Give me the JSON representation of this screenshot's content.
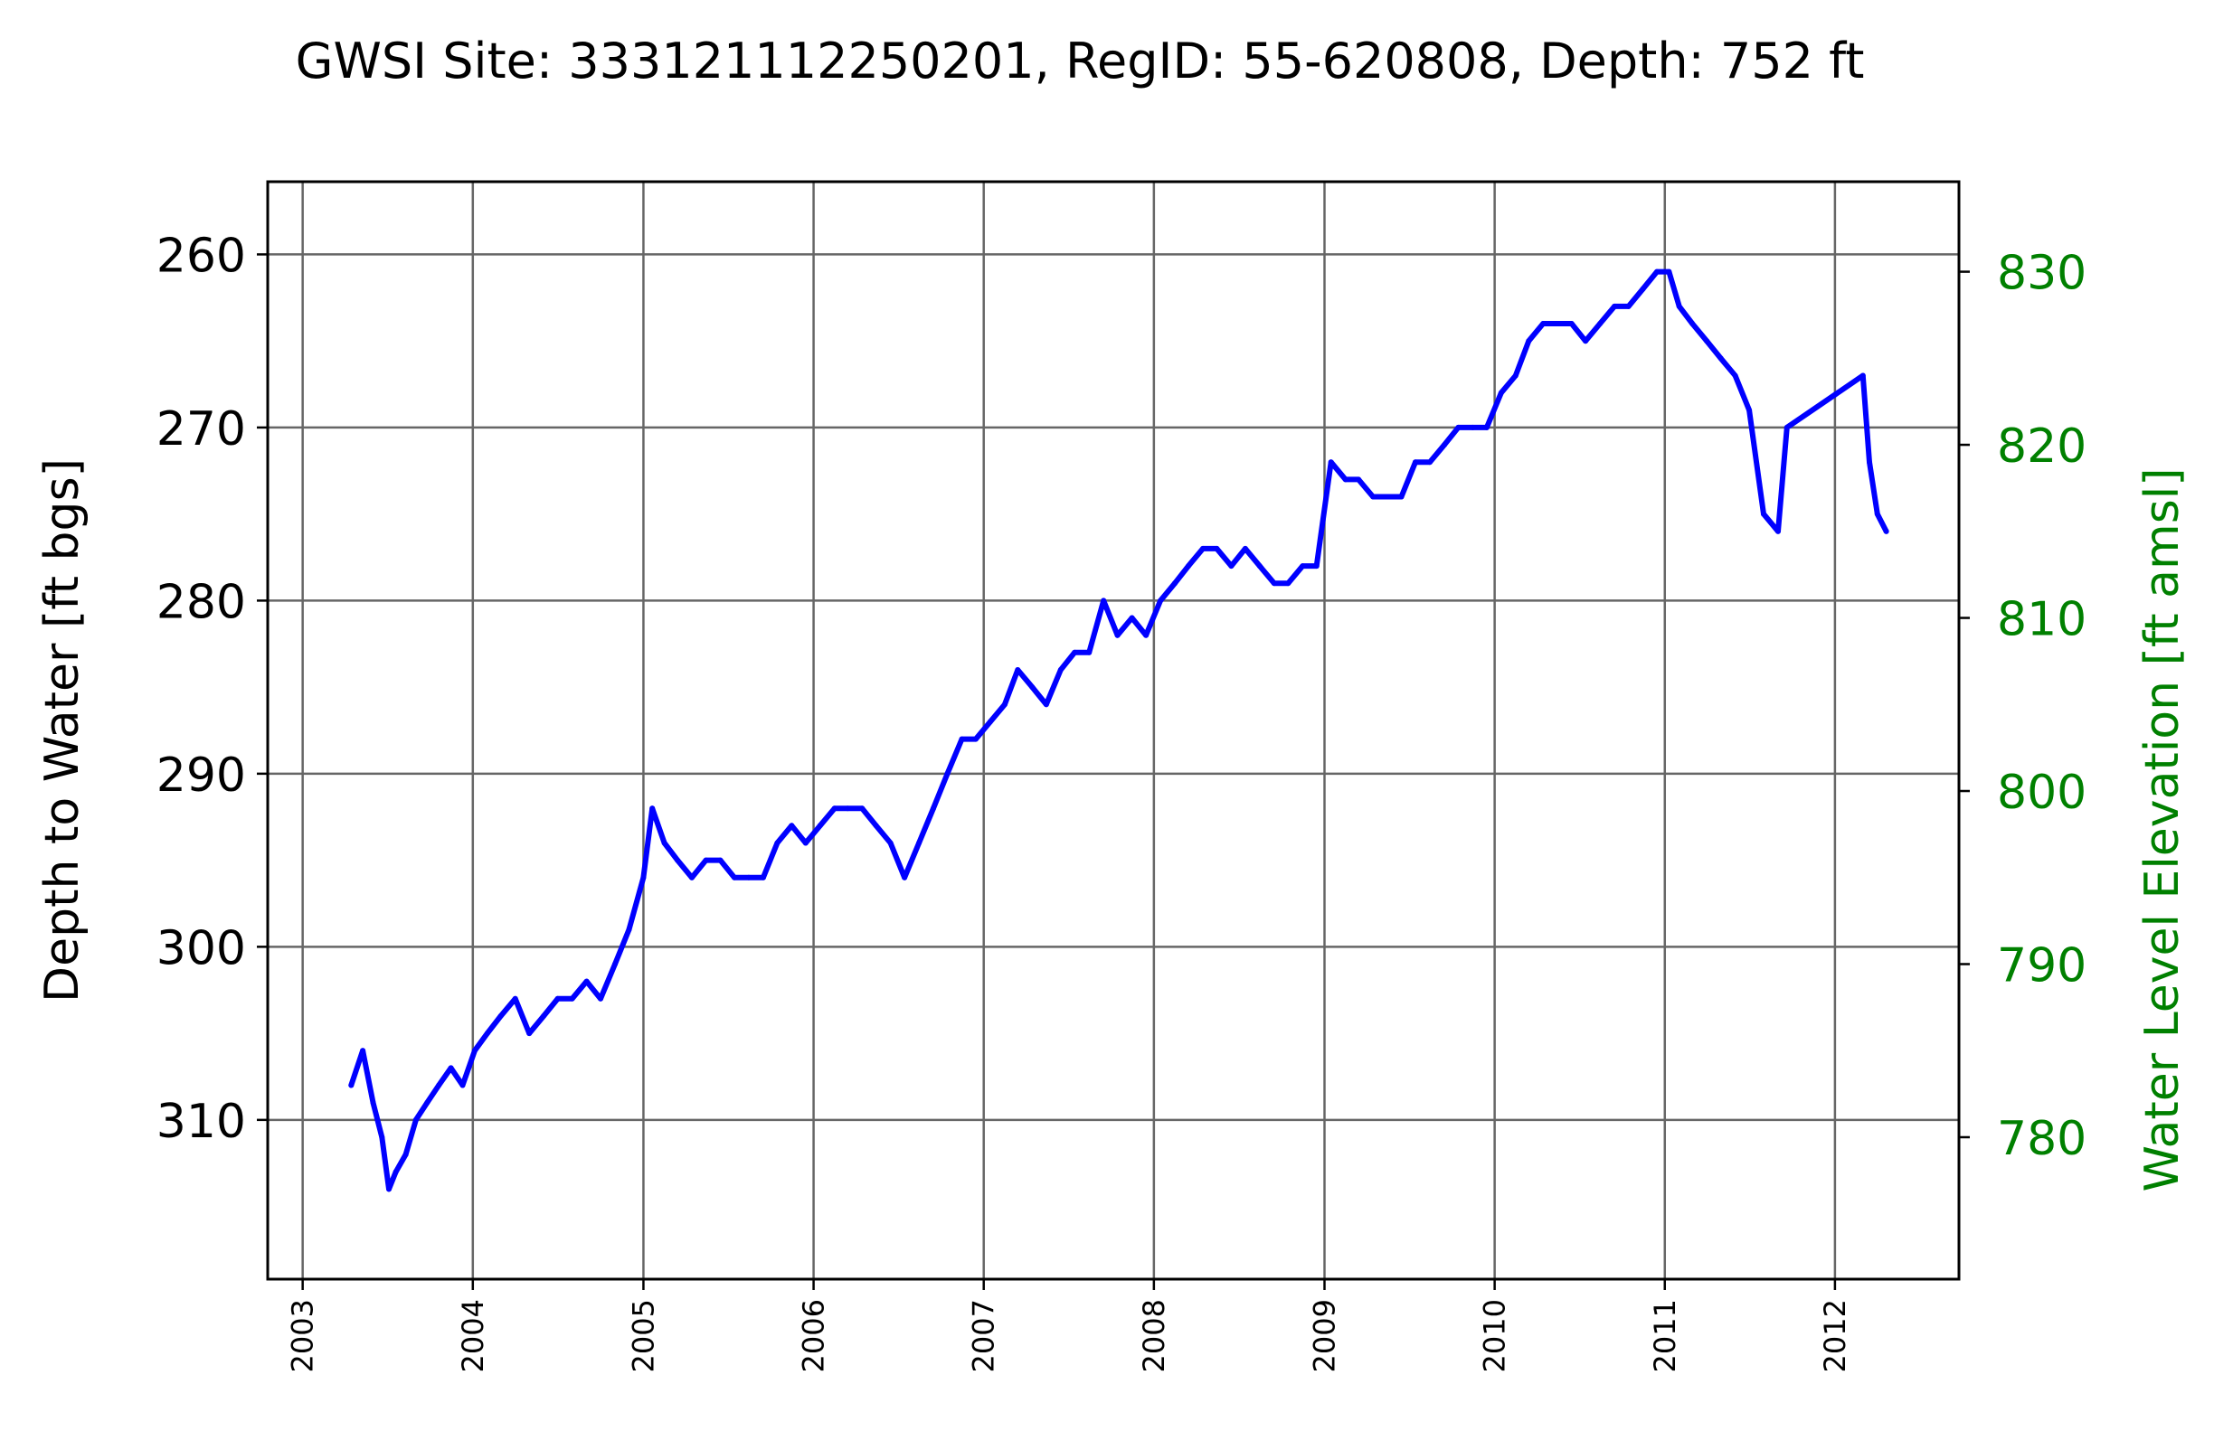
{
  "chart_data": {
    "type": "line",
    "title": "GWSI Site: 333121112250201, RegID: 55-620808, Depth: 752 ft",
    "ylabel": "Depth to Water [ft bgs]",
    "y2label": "Water Level Elevation [ft amsl]",
    "xlim": [
      "2002-10-18",
      "2012-09-23"
    ],
    "ylim": [
      319.2,
      255.8
    ],
    "y2lim": [
      771.8,
      835.2
    ],
    "y_inverted": true,
    "grid": true,
    "x_ticks": [
      "2003",
      "2004",
      "2005",
      "2006",
      "2007",
      "2008",
      "2009",
      "2010",
      "2011",
      "2012"
    ],
    "y_ticks": [
      "260",
      "270",
      "280",
      "290",
      "300",
      "310"
    ],
    "y2_ticks": [
      "830",
      "820",
      "810",
      "800",
      "790",
      "780"
    ],
    "colors": {
      "series": "#0000ff",
      "right_axis": "#008000",
      "grid": "#666666",
      "axis": "#000000"
    },
    "series": [
      {
        "name": "",
        "x": [
          "2003-04-15",
          "2003-05-10",
          "2003-06-01",
          "2003-06-20",
          "2003-07-05",
          "2003-07-20",
          "2003-08-10",
          "2003-09-01",
          "2003-09-25",
          "2003-10-20",
          "2003-11-15",
          "2003-12-10",
          "2004-01-05",
          "2004-02-01",
          "2004-03-01",
          "2004-04-01",
          "2004-05-01",
          "2004-06-01",
          "2004-07-01",
          "2004-08-01",
          "2004-09-01",
          "2004-10-01",
          "2004-11-01",
          "2004-12-01",
          "2005-01-01",
          "2005-01-20",
          "2005-02-15",
          "2005-03-15",
          "2005-04-15",
          "2005-05-15",
          "2005-06-15",
          "2005-07-15",
          "2005-08-15",
          "2005-09-15",
          "2005-10-15",
          "2005-11-15",
          "2005-12-15",
          "2006-01-15",
          "2006-02-15",
          "2006-03-15",
          "2006-04-15",
          "2006-05-15",
          "2006-06-15",
          "2006-07-15",
          "2006-08-15",
          "2006-09-15",
          "2006-10-15",
          "2006-11-15",
          "2006-12-15",
          "2007-01-15",
          "2007-02-15",
          "2007-03-15",
          "2007-04-15",
          "2007-05-15",
          "2007-06-15",
          "2007-07-15",
          "2007-08-15",
          "2007-09-15",
          "2007-10-15",
          "2007-11-15",
          "2007-12-15",
          "2008-01-15",
          "2008-02-15",
          "2008-03-15",
          "2008-04-15",
          "2008-05-15",
          "2008-06-15",
          "2008-07-15",
          "2008-08-15",
          "2008-09-15",
          "2008-10-15",
          "2008-11-15",
          "2008-12-15",
          "2009-01-15",
          "2009-02-15",
          "2009-03-15",
          "2009-04-15",
          "2009-05-15",
          "2009-06-15",
          "2009-07-15",
          "2009-08-15",
          "2009-09-15",
          "2009-10-15",
          "2009-11-15",
          "2009-12-15",
          "2010-01-15",
          "2010-02-15",
          "2010-03-15",
          "2010-04-15",
          "2010-05-15",
          "2010-06-15",
          "2010-07-15",
          "2010-08-15",
          "2010-09-15",
          "2010-10-15",
          "2010-11-15",
          "2010-12-15",
          "2011-01-10",
          "2011-02-01",
          "2011-03-01",
          "2011-04-01",
          "2011-05-01",
          "2011-06-01",
          "2011-07-01",
          "2011-08-01",
          "2011-09-01",
          "2011-09-20",
          "2012-03-01",
          "2012-03-15",
          "2012-04-01",
          "2012-04-20"
        ],
        "values": [
          308,
          306,
          309,
          311,
          314,
          313,
          312,
          310,
          309,
          308,
          307,
          308,
          306,
          305,
          304,
          303,
          305,
          304,
          303,
          303,
          302,
          303,
          301,
          299,
          296,
          292,
          294,
          295,
          296,
          295,
          295,
          296,
          296,
          296,
          294,
          293,
          294,
          293,
          292,
          292,
          292,
          293,
          294,
          296,
          294,
          292,
          290,
          288,
          288,
          287,
          286,
          284,
          285,
          286,
          284,
          283,
          283,
          280,
          282,
          281,
          282,
          280,
          279,
          278,
          277,
          277,
          278,
          277,
          278,
          279,
          279,
          278,
          278,
          272,
          273,
          273,
          274,
          274,
          274,
          272,
          272,
          271,
          270,
          270,
          270,
          268,
          267,
          265,
          264,
          264,
          264,
          265,
          264,
          263,
          263,
          262,
          261,
          261,
          263,
          264,
          265,
          266,
          267,
          269,
          275,
          276,
          270,
          267,
          272,
          275,
          276
        ]
      }
    ]
  }
}
